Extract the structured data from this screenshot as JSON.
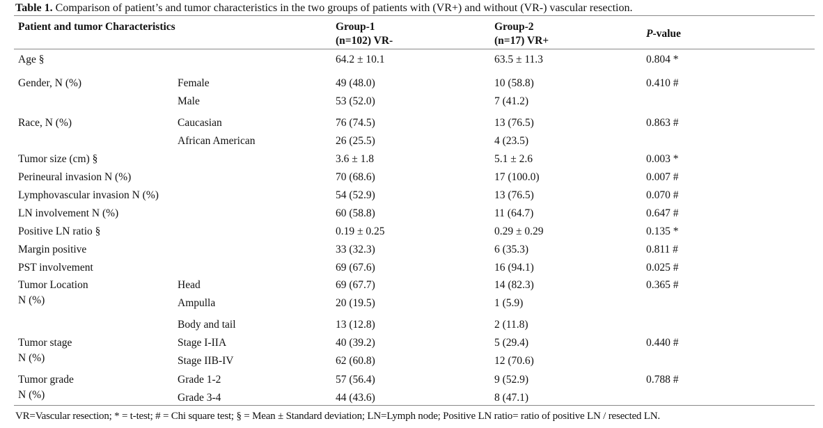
{
  "caption": {
    "label": "Table 1.",
    "text": " Comparison of patient’s and tumor characteristics in the two groups of patients with (VR+) and without (VR-) vascular resection."
  },
  "header": {
    "characteristics": "Patient and tumor Characteristics",
    "group1_line1": "Group-1",
    "group1_line2": "(n=102) VR-",
    "group2_line1": "Group-2",
    "group2_line2": "(n=17) VR+",
    "pvalue_italic": "P",
    "pvalue_rest": "-value"
  },
  "rows": [
    {
      "characteristic": "Age §",
      "sub": "",
      "g1": "64.2 ± 10.1",
      "g2": "63.5 ± 11.3",
      "p": "0.804 *"
    },
    {
      "characteristic": "Gender, N (%)",
      "sub": "Female",
      "g1": "49 (48.0)",
      "g2": "10 (58.8)",
      "p": "0.410 #"
    },
    {
      "characteristic": "",
      "sub": "Male",
      "g1": "53 (52.0)",
      "g2": "7 (41.2)",
      "p": ""
    },
    {
      "characteristic": "Race, N (%)",
      "sub": "Caucasian",
      "g1": "76 (74.5)",
      "g2": "13 (76.5)",
      "p": "0.863 #"
    },
    {
      "characteristic": "",
      "sub": "African American",
      "g1": "26 (25.5)",
      "g2": "4 (23.5)",
      "p": ""
    },
    {
      "characteristic": "Tumor size (cm) §",
      "sub": "",
      "g1": "3.6 ± 1.8",
      "g2": "5.1 ± 2.6",
      "p": "0.003 *"
    },
    {
      "characteristic": "Perineural invasion N (%)",
      "sub": "",
      "g1": "70 (68.6)",
      "g2": "17 (100.0)",
      "p": "0.007 #"
    },
    {
      "characteristic": "Lymphovascular invasion N (%)",
      "sub": "",
      "g1": "54 (52.9)",
      "g2": "13 (76.5)",
      "p": "0.070 #"
    },
    {
      "characteristic": "LN involvement N (%)",
      "sub": "",
      "g1": "60 (58.8)",
      "g2": "11 (64.7)",
      "p": "0.647 #"
    },
    {
      "characteristic": "Positive LN ratio §",
      "sub": "",
      "g1": "0.19 ± 0.25",
      "g2": "0.29 ± 0.29",
      "p": "0.135 *"
    },
    {
      "characteristic": "Margin positive",
      "sub": "",
      "g1": "33 (32.3)",
      "g2": "6 (35.3)",
      "p": "0.811 #"
    },
    {
      "characteristic": "PST involvement",
      "sub": "",
      "g1": "69 (67.6)",
      "g2": "16 (94.1)",
      "p": "0.025 #"
    },
    {
      "characteristic": "Tumor Location",
      "characteristic2": "N (%)",
      "sub": "Head",
      "g1": "69 (67.7)",
      "g2": "14 (82.3)",
      "p": "0.365 #"
    },
    {
      "characteristic": "",
      "sub": "Ampulla",
      "g1": "20 (19.5)",
      "g2": "1 (5.9)",
      "p": ""
    },
    {
      "characteristic": "",
      "sub": "Body and tail",
      "g1": "13 (12.8)",
      "g2": "2 (11.8)",
      "p": ""
    },
    {
      "characteristic": "Tumor stage",
      "characteristic2": "N (%)",
      "sub": "Stage I-IIA",
      "g1": "40 (39.2)",
      "g2": "5 (29.4)",
      "p": "0.440 #"
    },
    {
      "characteristic": "",
      "sub": "Stage IIB-IV",
      "g1": "62 (60.8)",
      "g2": "12 (70.6)",
      "p": ""
    },
    {
      "characteristic": "Tumor grade",
      "characteristic2": "N (%)",
      "sub": "Grade 1-2",
      "g1": "57 (56.4)",
      "g2": "9 (52.9)",
      "p": "0.788 #"
    },
    {
      "characteristic": "",
      "sub": "Grade 3-4",
      "g1": "44 (43.6)",
      "g2": "8 (47.1)",
      "p": ""
    }
  ],
  "footnote": "VR=Vascular resection; * = t-test; # = Chi square test;  § = Mean ± Standard deviation; LN=Lymph node; Positive LN ratio= ratio of positive LN / resected LN."
}
